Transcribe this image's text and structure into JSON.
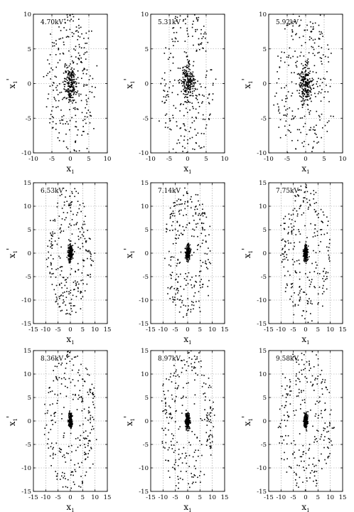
{
  "chart_data": [
    {
      "type": "scatter",
      "annotation": "4.70kV",
      "xlabel": "x",
      "xlabel_sub": "1",
      "ylabel": "x",
      "ylabel_prime": "'",
      "xlim": [
        -10,
        10
      ],
      "ylim": [
        -10,
        10
      ],
      "xticks": [
        -10,
        -5,
        0,
        5,
        10
      ],
      "yticks": [
        -10,
        -5,
        0,
        5,
        10
      ],
      "grid": true,
      "core": {
        "center": [
          0,
          0
        ],
        "sx": 1.6,
        "sy": 2.6,
        "n": 220
      },
      "halo": {
        "rx": 6,
        "ry": 9.5,
        "n": 230,
        "ang": 0
      }
    },
    {
      "type": "scatter",
      "annotation": "5.31kV",
      "xlabel": "x",
      "xlabel_sub": "1",
      "ylabel": "x",
      "ylabel_prime": "'",
      "xlim": [
        -10,
        10
      ],
      "ylim": [
        -10,
        10
      ],
      "xticks": [
        -10,
        -5,
        0,
        5,
        10
      ],
      "yticks": [
        -10,
        -5,
        0,
        5,
        10
      ],
      "grid": true,
      "core": {
        "center": [
          0,
          0
        ],
        "sx": 1.8,
        "sy": 2.4,
        "n": 220
      },
      "halo": {
        "rx": 6.5,
        "ry": 10,
        "n": 230,
        "ang": 0
      }
    },
    {
      "type": "scatter",
      "annotation": "5.92kV",
      "xlabel": "x",
      "xlabel_sub": "1",
      "ylabel": "x",
      "ylabel_prime": "'",
      "xlim": [
        -10,
        10
      ],
      "ylim": [
        -10,
        10
      ],
      "xticks": [
        -10,
        -5,
        0,
        5,
        10
      ],
      "yticks": [
        -10,
        -5,
        0,
        5,
        10
      ],
      "grid": true,
      "core": {
        "center": [
          0,
          0
        ],
        "sx": 1.7,
        "sy": 2.6,
        "n": 220
      },
      "halo": {
        "rx": 7.5,
        "ry": 10,
        "n": 230,
        "ang": 0.35
      }
    },
    {
      "type": "scatter",
      "annotation": "6.53kV",
      "xlabel": "x",
      "xlabel_sub": "1",
      "ylabel": "x",
      "ylabel_prime": "'",
      "xlim": [
        -15,
        15
      ],
      "ylim": [
        -15,
        15
      ],
      "xticks": [
        -15,
        -10,
        -5,
        0,
        5,
        10,
        15
      ],
      "yticks": [
        -15,
        -10,
        -5,
        0,
        5,
        10,
        15
      ],
      "grid": true,
      "core": {
        "center": [
          0,
          0
        ],
        "sx": 0.9,
        "sy": 1.6,
        "n": 200
      },
      "halo": {
        "rx": 8.5,
        "ry": 12,
        "n": 250,
        "ang": 0.1
      }
    },
    {
      "type": "scatter",
      "annotation": "7.14kV",
      "xlabel": "x",
      "xlabel_sub": "1",
      "ylabel": "x",
      "ylabel_prime": "'",
      "xlim": [
        -15,
        15
      ],
      "ylim": [
        -15,
        15
      ],
      "xticks": [
        -15,
        -10,
        -5,
        0,
        5,
        10,
        15
      ],
      "yticks": [
        -15,
        -10,
        -5,
        0,
        5,
        10,
        15
      ],
      "grid": true,
      "core": {
        "center": [
          0,
          0
        ],
        "sx": 0.8,
        "sy": 1.5,
        "n": 200
      },
      "halo": {
        "rx": 8.5,
        "ry": 12.5,
        "n": 250,
        "ang": 0
      }
    },
    {
      "type": "scatter",
      "annotation": "7.75kV",
      "xlabel": "x",
      "xlabel_sub": "1",
      "ylabel": "x",
      "ylabel_prime": "'",
      "xlim": [
        -15,
        15
      ],
      "ylim": [
        -15,
        15
      ],
      "xticks": [
        -15,
        -10,
        -5,
        0,
        5,
        10,
        15
      ],
      "yticks": [
        -15,
        -10,
        -5,
        0,
        5,
        10,
        15
      ],
      "grid": true,
      "core": {
        "center": [
          0,
          0
        ],
        "sx": 0.8,
        "sy": 1.5,
        "n": 200
      },
      "halo": {
        "rx": 9,
        "ry": 13,
        "n": 250,
        "ang": 0
      }
    },
    {
      "type": "scatter",
      "annotation": "8.36kV",
      "xlabel": "x",
      "xlabel_sub": "1",
      "ylabel": "x",
      "ylabel_prime": "'",
      "xlim": [
        -15,
        15
      ],
      "ylim": [
        -15,
        15
      ],
      "xticks": [
        -15,
        -10,
        -5,
        0,
        5,
        10,
        15
      ],
      "yticks": [
        -15,
        -10,
        -5,
        0,
        5,
        10,
        15
      ],
      "grid": true,
      "core": {
        "center": [
          0,
          0
        ],
        "sx": 0.7,
        "sy": 1.6,
        "n": 200
      },
      "halo": {
        "rx": 9.5,
        "ry": 13.5,
        "n": 250,
        "ang": 0
      }
    },
    {
      "type": "scatter",
      "annotation": "8.97kV",
      "xlabel": "x",
      "xlabel_sub": "1",
      "ylabel": "x",
      "ylabel_prime": "'",
      "xlim": [
        -15,
        15
      ],
      "ylim": [
        -15,
        15
      ],
      "xticks": [
        -15,
        -10,
        -5,
        0,
        5,
        10,
        15
      ],
      "yticks": [
        -15,
        -10,
        -5,
        0,
        5,
        10,
        15
      ],
      "grid": true,
      "core": {
        "center": [
          0,
          0
        ],
        "sx": 0.7,
        "sy": 1.5,
        "n": 200
      },
      "halo": {
        "rx": 10,
        "ry": 13.5,
        "n": 250,
        "ang": 0
      }
    },
    {
      "type": "scatter",
      "annotation": "9.58kV",
      "xlabel": "x",
      "xlabel_sub": "1",
      "ylabel": "x",
      "ylabel_prime": "'",
      "xlim": [
        -15,
        15
      ],
      "ylim": [
        -15,
        15
      ],
      "xticks": [
        -15,
        -10,
        -5,
        0,
        5,
        10,
        15
      ],
      "yticks": [
        -15,
        -10,
        -5,
        0,
        5,
        10,
        15
      ],
      "grid": true,
      "core": {
        "center": [
          0,
          0
        ],
        "sx": 0.7,
        "sy": 1.5,
        "n": 200
      },
      "halo": {
        "rx": 10,
        "ry": 14,
        "n": 250,
        "ang": 0
      }
    }
  ],
  "colors": {
    "points": "#000000",
    "grid": "#9a9a9a",
    "axes": "#000000",
    "background": "#ffffff"
  }
}
